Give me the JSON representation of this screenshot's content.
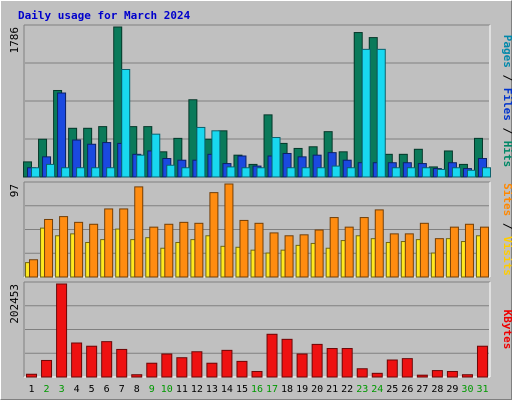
{
  "colors": {
    "background": "#c0c0c0",
    "title": "#0000cc",
    "pages": "#0088aa",
    "files": "#0033cc",
    "hits": "#008866",
    "sites": "#ff8800",
    "visits": "#ffcc00",
    "kbytes": "#ee0000",
    "weekend_day": "#009900",
    "weekday": "#000000"
  },
  "chart_data": {
    "type": "bar",
    "title": "Daily usage for March 2024",
    "days": [
      "1",
      "2",
      "3",
      "4",
      "5",
      "6",
      "7",
      "8",
      "9",
      "10",
      "11",
      "12",
      "13",
      "14",
      "15",
      "16",
      "17",
      "18",
      "19",
      "20",
      "21",
      "22",
      "23",
      "24",
      "25",
      "26",
      "27",
      "28",
      "29",
      "30",
      "31"
    ],
    "weekend_days": [
      "2",
      "3",
      "9",
      "10",
      "16",
      "17",
      "23",
      "24",
      "30",
      "31"
    ],
    "panels": [
      {
        "axis_max_label": "1786",
        "max": 1786,
        "legend": [
          "Pages",
          "Files",
          "Hits"
        ],
        "series": [
          {
            "name": "Hits",
            "color": "#0a7a5a",
            "values": [
              180,
              450,
              1030,
              580,
              580,
              600,
              1786,
              600,
              600,
              300,
              460,
              920,
              450,
              550,
              260,
              150,
              740,
              400,
              340,
              360,
              540,
              300,
              1720,
              1660,
              270,
              270,
              330,
              120,
              310,
              150,
              460
            ]
          },
          {
            "name": "Files",
            "color": "#1a49e0",
            "values": [
              110,
              240,
              1000,
              440,
              390,
              410,
              400,
              270,
              310,
              220,
              200,
              200,
              270,
              160,
              250,
              130,
              250,
              280,
              240,
              260,
              290,
              200,
              170,
              170,
              170,
              170,
              160,
              100,
              170,
              100,
              220
            ]
          },
          {
            "name": "Pages",
            "color": "#18d8f0",
            "values": [
              110,
              150,
              110,
              110,
              110,
              110,
              1280,
              260,
              510,
              140,
              110,
              590,
              550,
              120,
              110,
              110,
              470,
              110,
              110,
              110,
              130,
              110,
              1520,
              1520,
              110,
              110,
              110,
              90,
              110,
              80,
              110
            ]
          }
        ]
      },
      {
        "axis_max_label": "97",
        "max": 97,
        "legend": [
          "Sites",
          "Visits"
        ],
        "series": [
          {
            "name": "Visits",
            "color": "#ffe820",
            "values": [
              15,
              51,
              43,
              45,
              36,
              39,
              50,
              39,
              41,
              30,
              36,
              39,
              43,
              32,
              31,
              28,
              25,
              28,
              33,
              35,
              30,
              38,
              43,
              40,
              36,
              37,
              39,
              25,
              40,
              37,
              43
            ]
          },
          {
            "name": "Sites",
            "color": "#ff8c10",
            "values": [
              18,
              60,
              63,
              57,
              55,
              71,
              71,
              94,
              52,
              55,
              57,
              56,
              88,
              97,
              59,
              56,
              46,
              43,
              44,
              49,
              62,
              52,
              62,
              70,
              45,
              45,
              56,
              40,
              52,
              55,
              52
            ]
          }
        ]
      },
      {
        "axis_max_label": "202453",
        "max": 202453,
        "legend": [
          "KBytes"
        ],
        "series": [
          {
            "name": "KBytes",
            "color": "#ee1111",
            "values": [
              6000,
              36000,
              202453,
              74000,
              67000,
              77000,
              60000,
              5000,
              30000,
              50000,
              42000,
              55000,
              30000,
              58000,
              34000,
              12000,
              93000,
              82000,
              50000,
              71000,
              62000,
              62000,
              18000,
              8000,
              37000,
              40000,
              4000,
              14000,
              12000,
              5000,
              67000
            ]
          }
        ]
      }
    ]
  }
}
